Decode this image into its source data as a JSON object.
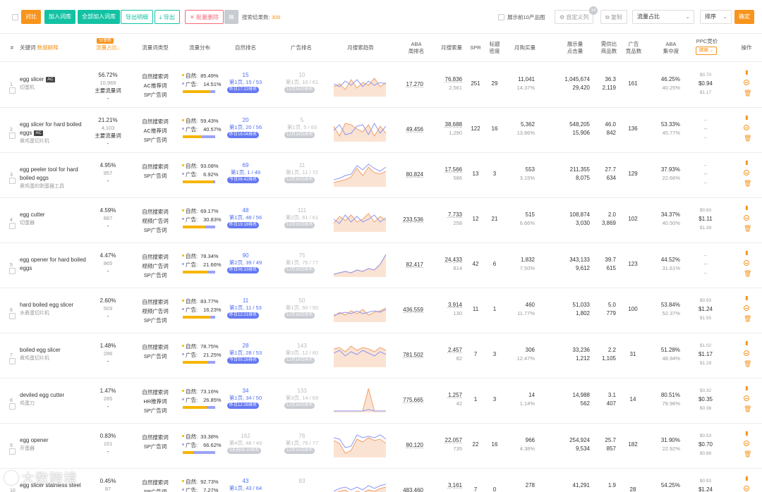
{
  "toolbar": {
    "compare": "对比",
    "add_to_lib": "加入词库",
    "add_all_to_lib": "全部加入词库",
    "export_detail": "导出明细",
    "export": "导出",
    "batch_delete": "✕ 批量删除",
    "result_label": "搜索结果数:",
    "result_count": "309",
    "show_top10": "展示前10产品图",
    "custom_columns": "自定义列",
    "custom_columns_badge": "14",
    "copy": "复制",
    "sort_field": "流量占比",
    "sort_order": "排序",
    "confirm": "确定"
  },
  "header": {
    "idx": "#",
    "keyword": "关键词",
    "keyword_link": "数据解释",
    "trend_badge": "分享新",
    "traffic_share": "流量占比",
    "traffic_type": "流量词类型",
    "dist": "流量分布",
    "natural_rank": "自然排名",
    "ad_rank": "广告排名",
    "monthly_trend": "月搜索趋势",
    "aba": "ABA\n周排名",
    "monthly_search": "月搜索量",
    "spr": "SPR",
    "title_density": "标题\n密度",
    "monthly_buy": "月购买量",
    "impressions": "展示量\n点击量",
    "supply_demand": "需供比\n商品数",
    "ad_products": "广告\n竞品数",
    "aba_conc": "ABA\n集中度",
    "ppc": "PPC竞价",
    "ppc_btn": "精确",
    "ops": "操作"
  },
  "rows": [
    {
      "no": "1",
      "kw": "egg slicer",
      "ac": "AC",
      "cn": "切蛋机",
      "share": "56.72%",
      "share_count": "10,969",
      "share_tag": "主要流量词",
      "share_dash": "-",
      "types": [
        "自然搜索词",
        "AC推荐词",
        "SP广告词"
      ],
      "nat_label": "自然:",
      "nat_pct": "85.49%",
      "ad_label": "广告:",
      "ad_pct": "14.51%",
      "nat_frac": 0.855,
      "nrank": "15",
      "npage": "第1页, 15 / 53",
      "npill": "昨日17:22排名",
      "npill_blue": true,
      "arank": "10",
      "apage": "第1页, 10 / 61",
      "apill": "12月16日排名",
      "aba": "17,270",
      "ms": "76,836",
      "ms2": "2,561",
      "spr": "251",
      "td": "29",
      "mb": "11,041",
      "mb2": "14.37%",
      "imp": "1,045,674",
      "clk": "29,420",
      "sd": "36.3",
      "pc": "2,119",
      "adc": "161",
      "conc": "46.25%",
      "conc2": "40.25%",
      "ppc1": "$0.70",
      "ppc2": "$0.94",
      "ppc3": "$1.17",
      "trend_a": [
        22,
        18,
        26,
        12,
        24,
        16,
        20,
        10,
        22,
        16
      ],
      "trend_b": [
        18,
        22,
        14,
        20,
        12,
        22,
        14,
        20,
        16,
        18
      ]
    },
    {
      "no": "2",
      "kw": "egg slicer for hard boiled eggs",
      "ac": "AC",
      "cn": "煮鸡蛋切片机",
      "share": "21.21%",
      "share_count": "4,103",
      "share_tag": "主要流量词",
      "share_dash": "-",
      "types": [
        "自然搜索词",
        "AC推荐词",
        "SP广告词"
      ],
      "nat_label": "自然:",
      "nat_pct": "59.43%",
      "ad_label": "广告:",
      "ad_pct": "40.57%",
      "nat_frac": 0.594,
      "nrank": "20",
      "npage": "第1页, 20 / 56",
      "npill": "昨日16:04排名",
      "npill_blue": true,
      "arank": "5",
      "apage": "第1页, 5 / 83",
      "apill": "12月16日排名",
      "aba": "49,456",
      "ms": "38,688",
      "ms2": "1,290",
      "spr": "122",
      "td": "16",
      "mb": "5,362",
      "mb2": "13.86%",
      "imp": "548,205",
      "clk": "15,906",
      "sd": "46.0",
      "pc": "842",
      "adc": "136",
      "conc": "53.33%",
      "conc2": "45.77%",
      "ppc1": "--",
      "ppc2": "--",
      "ppc3": "--",
      "trend_a": [
        14,
        28,
        10,
        12,
        18,
        22,
        12,
        28,
        14,
        24
      ],
      "trend_b": [
        20,
        12,
        26,
        24,
        14,
        12,
        26,
        10,
        24,
        14
      ]
    },
    {
      "no": "3",
      "kw": "egg peeler tool for hard boiled eggs",
      "ac": "",
      "cn": "煮鸡蛋的剥蛋器工具",
      "share": "4.95%",
      "share_count": "957",
      "share_tag": "",
      "share_dash": "-",
      "types": [
        "自然搜索词",
        "SP广告词"
      ],
      "nat_label": "自然:",
      "nat_pct": "93.08%",
      "ad_label": "广告:",
      "ad_pct": "6.92%",
      "nat_frac": 0.931,
      "nrank": "69",
      "npage": "第1页, 1 / 49",
      "npill": "今日06:42排名",
      "npill_blue": true,
      "arank": "11",
      "apage": "第1页, 11 / 72",
      "apill": "12月16日排名",
      "aba": "80,824",
      "ms": "17,566",
      "ms2": "586",
      "spr": "13",
      "td": "3",
      "mb": "553",
      "mb2": "3.15%",
      "imp": "211,355",
      "clk": "8,075",
      "sd": "27.7",
      "pc": "634",
      "adc": "129",
      "conc": "37.93%",
      "conc2": "22.66%",
      "ppc1": "--",
      "ppc2": "--",
      "ppc3": "--",
      "trend_a": [
        30,
        28,
        26,
        22,
        10,
        20,
        8,
        16,
        18,
        14
      ],
      "trend_b": [
        26,
        24,
        20,
        18,
        6,
        12,
        4,
        10,
        14,
        8
      ]
    },
    {
      "no": "4",
      "kw": "egg cutter",
      "ac": "",
      "cn": "切蛋器",
      "share": "4.59%",
      "share_count": "887",
      "share_tag": "",
      "share_dash": "-",
      "types": [
        "自然搜索词",
        "视频广告词",
        "SP广告词"
      ],
      "nat_label": "自然:",
      "nat_pct": "69.17%",
      "ad_label": "广告:",
      "ad_pct": "30.83%",
      "nat_frac": 0.692,
      "nrank": "48",
      "npage": "第1页, 48 / 56",
      "npill": "昨日19:18排名",
      "npill_blue": true,
      "arank": "111",
      "apage": "第2页, 61 / 61",
      "apill": "12月16日排名",
      "aba": "233,536",
      "ms": "7,733",
      "ms2": "258",
      "spr": "12",
      "td": "21",
      "mb": "515",
      "mb2": "6.66%",
      "imp": "108,874",
      "clk": "3,030",
      "sd": "2.0",
      "pc": "3,869",
      "adc": "102",
      "conc": "34.37%",
      "conc2": "40.50%",
      "ppc1": "$0.83",
      "ppc2": "$1.11",
      "ppc3": "$1.39",
      "trend_a": [
        24,
        14,
        20,
        12,
        22,
        18,
        10,
        22,
        14,
        20
      ],
      "trend_b": [
        18,
        24,
        12,
        22,
        14,
        22,
        18,
        12,
        22,
        16
      ]
    },
    {
      "no": "5",
      "kw": "egg opener for hard boiled eggs",
      "ac": "",
      "cn": "",
      "share": "4.47%",
      "share_count": "865",
      "share_tag": "",
      "share_dash": "-",
      "types": [
        "自然搜索词",
        "视频广告词",
        "SP广告词"
      ],
      "nat_label": "自然:",
      "nat_pct": "78.34%",
      "ad_label": "广告:",
      "ad_pct": "21.66%",
      "nat_frac": 0.783,
      "nrank": "90",
      "npage": "第2页, 39 / 49",
      "npill": "昨日06:33排名",
      "npill_blue": true,
      "arank": "75",
      "apage": "第1页, 75 / 77",
      "apill": "12月16日排名",
      "aba": "82,417",
      "ms": "24,433",
      "ms2": "814",
      "spr": "42",
      "td": "6",
      "mb": "1,832",
      "mb2": "7.50%",
      "imp": "343,133",
      "clk": "9,612",
      "sd": "39.7",
      "pc": "615",
      "adc": "123",
      "conc": "44.52%",
      "conc2": "31.61%",
      "ppc1": "--",
      "ppc2": "--",
      "ppc3": "--",
      "trend_a": [
        32,
        30,
        28,
        30,
        26,
        28,
        24,
        26,
        18,
        4
      ],
      "trend_b": [
        32,
        30,
        28,
        30,
        26,
        28,
        24,
        26,
        18,
        4
      ]
    },
    {
      "no": "6",
      "kw": "hard boiled egg slicer",
      "ac": "",
      "cn": "水煮蛋切片机",
      "share": "2.60%",
      "share_count": "503",
      "share_tag": "",
      "share_dash": "-",
      "types": [
        "自然搜索词",
        "视频广告词",
        "SP广告词"
      ],
      "nat_label": "自然:",
      "nat_pct": "83.77%",
      "ad_label": "广告:",
      "ad_pct": "16.23%",
      "nat_frac": 0.838,
      "nrank": "11",
      "npage": "第1页, 11 / 53",
      "npill": "昨日12:21排名",
      "npill_blue": true,
      "arank": "50",
      "apage": "第1页, 50 / 50",
      "apill": "12月16日排名",
      "aba": "436,559",
      "ms": "3,914",
      "ms2": "130",
      "spr": "11",
      "td": "1",
      "mb": "460",
      "mb2": "11.77%",
      "imp": "51,033",
      "clk": "1,802",
      "sd": "5.0",
      "pc": "779",
      "adc": "100",
      "conc": "53.84%",
      "conc2": "52.37%",
      "ppc1": "$0.93",
      "ppc2": "$1.24",
      "ppc3": "$1.55",
      "trend_a": [
        28,
        22,
        26,
        20,
        24,
        18,
        26,
        22,
        20,
        16
      ],
      "trend_b": [
        26,
        24,
        22,
        24,
        20,
        24,
        22,
        20,
        22,
        18
      ]
    },
    {
      "no": "7",
      "kw": "boiled egg slicer",
      "ac": "",
      "cn": "煮鸡蛋切片机",
      "share": "1.48%",
      "share_count": "286",
      "share_tag": "",
      "share_dash": "-",
      "types": [
        "自然搜索词",
        "SP广告词"
      ],
      "nat_label": "自然:",
      "nat_pct": "78.75%",
      "ad_label": "广告:",
      "ad_pct": "21.25%",
      "nat_frac": 0.788,
      "nrank": "28",
      "npage": "第1页, 28 / 53",
      "npill": "今日05:16排名",
      "npill_blue": true,
      "arank": "143",
      "apage": "第3页, 12 / 60",
      "apill": "12月16日排名",
      "aba": "781,502",
      "ms": "2,457",
      "ms2": "82",
      "spr": "7",
      "td": "3",
      "mb": "306",
      "mb2": "12.47%",
      "imp": "33,236",
      "clk": "1,212",
      "sd": "2.2",
      "pc": "1,105",
      "adc": "31",
      "conc": "51.28%",
      "conc2": "48.94%",
      "ppc1": "$1.02",
      "ppc2": "$1.17",
      "ppc3": "$1.29",
      "trend_a": [
        10,
        8,
        14,
        6,
        12,
        8,
        10,
        14,
        8,
        12
      ],
      "trend_b": [
        16,
        12,
        20,
        14,
        18,
        12,
        16,
        20,
        14,
        18
      ]
    },
    {
      "no": "8",
      "kw": "deviled egg cutter",
      "ac": "",
      "cn": "鸡蛋刀",
      "share": "1.47%",
      "share_count": "285",
      "share_tag": "",
      "share_dash": "-",
      "types": [
        "自然搜索词",
        "HR推荐词",
        "SP广告词"
      ],
      "nat_label": "自然:",
      "nat_pct": "73.16%",
      "ad_label": "广告:",
      "ad_pct": "26.85%",
      "nat_frac": 0.732,
      "nrank": "34",
      "npage": "第1页, 34 / 50",
      "npill": "昨日12:26排名",
      "npill_blue": true,
      "arank": "133",
      "apage": "第3页, 14 / 69",
      "apill": "12月16日排名",
      "aba": "775,665",
      "ms": "1,257",
      "ms2": "42",
      "spr": "1",
      "td": "3",
      "mb": "14",
      "mb2": "1.14%",
      "imp": "14,988",
      "clk": "562",
      "sd": "3.1",
      "pc": "407",
      "adc": "14",
      "conc": "80.51%",
      "conc2": "78.96%",
      "ppc1": "$0.32",
      "ppc2": "$0.35",
      "ppc3": "$0.38",
      "trend_a": [
        34,
        34,
        34,
        34,
        34,
        34,
        2,
        34,
        34,
        34
      ],
      "trend_b": [
        34,
        34,
        34,
        34,
        34,
        34,
        32,
        34,
        34,
        34
      ]
    },
    {
      "no": "9",
      "kw": "egg opener",
      "ac": "",
      "cn": "开蛋器",
      "share": "0.83%",
      "share_count": "161",
      "share_tag": "",
      "share_dash": "-",
      "types": [
        "自然搜索词",
        "SP广告词"
      ],
      "nat_label": "自然:",
      "nat_pct": "33.38%",
      "ad_label": "广告:",
      "ad_pct": "66.62%",
      "nat_frac": 0.334,
      "nrank": "162",
      "npage": "第4页, 48 / 49",
      "npill": "3天前06:10排名",
      "npill_blue": false,
      "arank": "76",
      "apage": "第1页, 76 / 77",
      "apill": "12月16日排名",
      "aba": "80,120",
      "ms": "22,057",
      "ms2": "735",
      "spr": "22",
      "td": "16",
      "mb": "966",
      "mb2": "4.38%",
      "imp": "254,924",
      "clk": "9,534",
      "sd": "25.7",
      "pc": "857",
      "adc": "182",
      "conc": "31.90%",
      "conc2": "22.92%",
      "ppc1": "$0.53",
      "ppc2": "$0.70",
      "ppc3": "$0.88",
      "trend_a": [
        12,
        16,
        30,
        26,
        10,
        14,
        8,
        12,
        10,
        16
      ],
      "trend_b": [
        8,
        10,
        22,
        20,
        4,
        8,
        6,
        8,
        4,
        10
      ]
    },
    {
      "no": "10",
      "kw": "egg slicer stainless steel",
      "ac": "",
      "cn": "",
      "share": "0.45%",
      "share_count": "87",
      "share_tag": "",
      "share_dash": "-",
      "types": [
        "自然搜索词",
        "SP广告词"
      ],
      "nat_label": "自然:",
      "nat_pct": "92.73%",
      "ad_label": "广告:",
      "ad_pct": "7.27%",
      "nat_frac": 0.927,
      "nrank": "43",
      "npage": "第1页, 43 / 64",
      "npill": "",
      "npill_blue": true,
      "arank": "83",
      "apage": "",
      "apill": "",
      "aba": "483,460",
      "ms": "3,161",
      "ms2": "",
      "spr": "7",
      "td": "0",
      "mb": "278",
      "mb2": "",
      "imp": "41,291",
      "clk": "",
      "sd": "1.9",
      "pc": "",
      "adc": "28",
      "conc": "54.25%",
      "conc2": "",
      "ppc1": "$0.93",
      "ppc2": "$1.24",
      "ppc3": "",
      "trend_a": [
        24,
        20,
        18,
        24,
        20,
        22,
        18,
        20,
        16,
        14
      ],
      "trend_b": [
        20,
        16,
        14,
        18,
        14,
        18,
        12,
        16,
        12,
        10
      ]
    }
  ],
  "watermark": "大数跨境",
  "colors": {
    "orange": "#f7941d",
    "green": "#13c2a3",
    "blue": "#4e6ef2",
    "trend_a": "#f0a06a",
    "trend_b": "#8f95f2"
  }
}
